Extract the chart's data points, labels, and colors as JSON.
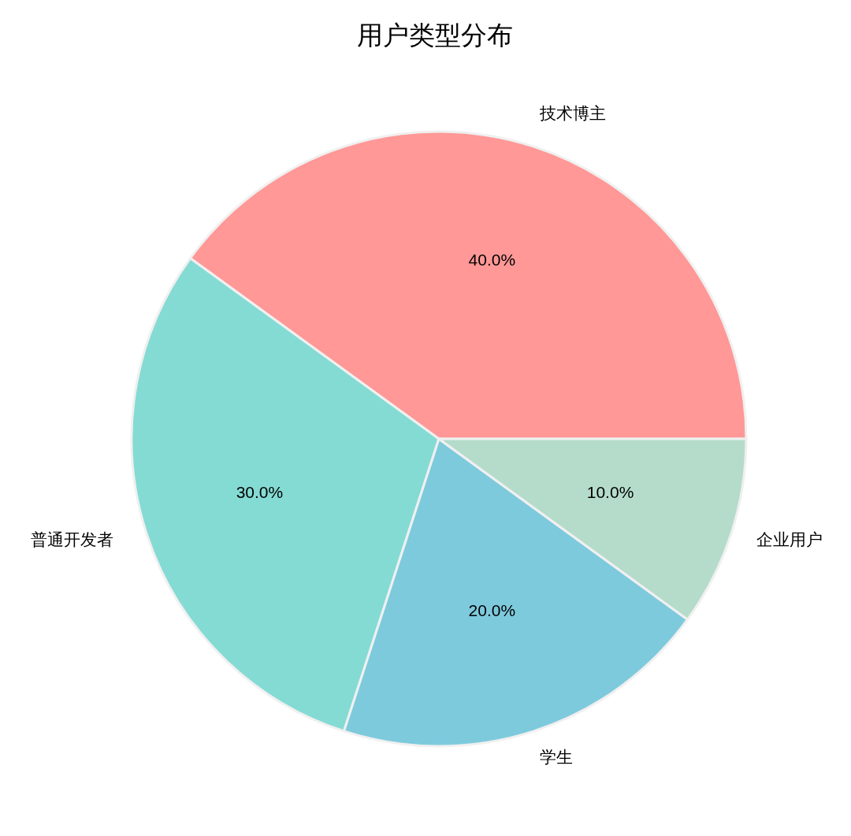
{
  "chart_data": {
    "type": "pie",
    "title": "用户类型分布",
    "categories": [
      "技术博主",
      "普通开发者",
      "学生",
      "企业用户"
    ],
    "values": [
      40,
      30,
      20,
      10
    ],
    "colors": [
      "#ff9896",
      "#84dbd4",
      "#7ecadd",
      "#b5dccb"
    ],
    "value_labels": [
      "40.0%",
      "30.0%",
      "20.0%",
      "10.0%"
    ]
  }
}
